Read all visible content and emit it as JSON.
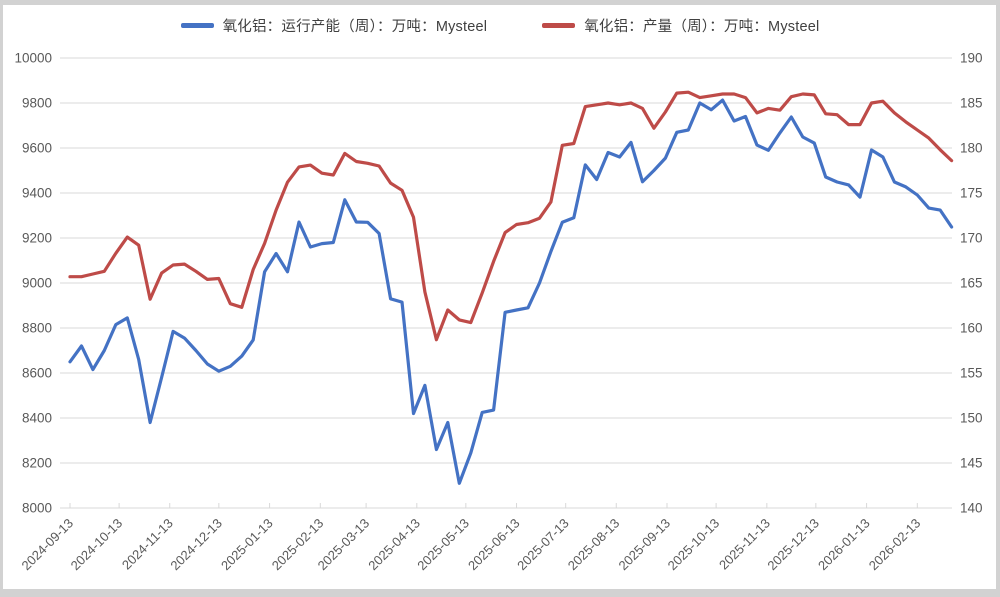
{
  "chart_data": {
    "type": "line",
    "legend_position": "top",
    "grid": "horizontal",
    "left_axis": {
      "min": 8000,
      "max": 10000,
      "step": 200,
      "ticks": [
        "10000",
        "9800",
        "9600",
        "9400",
        "9200",
        "9000",
        "8800",
        "8600",
        "8400",
        "8200",
        "8000"
      ]
    },
    "right_axis": {
      "min": 140,
      "max": 190,
      "step": 5,
      "ticks": [
        "190",
        "185",
        "180",
        "175",
        "170",
        "165",
        "160",
        "155",
        "150",
        "145",
        "140"
      ]
    },
    "x_ticks": [
      {
        "label": "2024-09-13",
        "pos": 0
      },
      {
        "label": "2024-10-13",
        "pos": 4.29
      },
      {
        "label": "2024-11-13",
        "pos": 8.71
      },
      {
        "label": "2024-12-13",
        "pos": 13
      },
      {
        "label": "2025-01-13",
        "pos": 17.43
      },
      {
        "label": "2025-02-13",
        "pos": 21.86
      },
      {
        "label": "2025-03-13",
        "pos": 25.86
      },
      {
        "label": "2025-04-13",
        "pos": 30.29
      },
      {
        "label": "2025-05-13",
        "pos": 34.57
      },
      {
        "label": "2025-06-13",
        "pos": 39
      },
      {
        "label": "2025-07-13",
        "pos": 43.29
      },
      {
        "label": "2025-08-13",
        "pos": 47.71
      },
      {
        "label": "2025-09-13",
        "pos": 52.14
      },
      {
        "label": "2025-10-13",
        "pos": 56.43
      },
      {
        "label": "2025-11-13",
        "pos": 60.86
      },
      {
        "label": "2025-12-13",
        "pos": 65.14
      },
      {
        "label": "2026-01-13",
        "pos": 69.57
      },
      {
        "label": "2026-02-13",
        "pos": 74
      }
    ],
    "series": [
      {
        "key": "capacity",
        "name": "氧化铝：运行产能（周）：万吨：Mysteel",
        "axis": "left",
        "color": "#4472C4",
        "values": [
          8650,
          8720,
          8615,
          8700,
          8815,
          8845,
          8660,
          8380,
          8580,
          8785,
          8755,
          8700,
          8640,
          8608,
          8630,
          8675,
          8747,
          9050,
          9131,
          9050,
          9271,
          9160,
          9175,
          9180,
          9370,
          9271,
          9270,
          9220,
          8930,
          8915,
          8420,
          8545,
          8260,
          8380,
          8110,
          8245,
          8425,
          8435,
          8870,
          8880,
          8890,
          9000,
          9140,
          9270,
          9290,
          9525,
          9460,
          9580,
          9560,
          9625,
          9450,
          9500,
          9555,
          9670,
          9680,
          9800,
          9770,
          9813,
          9720,
          9740,
          9613,
          9590,
          9667,
          9738,
          9649,
          9622,
          9471,
          9449,
          9436,
          9382,
          9591,
          9560,
          9449,
          9427,
          9391,
          9333,
          9324,
          9249
        ]
      },
      {
        "key": "production",
        "name": "氧化铝：产量（周）：万吨：Mysteel",
        "axis": "right",
        "color": "#BE4B48",
        "values": [
          165.7,
          165.7,
          166.0,
          166.3,
          168.3,
          170.1,
          169.2,
          163.2,
          166.1,
          167.0,
          167.1,
          166.3,
          165.4,
          165.5,
          162.7,
          162.3,
          166.5,
          169.4,
          173.1,
          176.2,
          177.9,
          178.1,
          177.2,
          177.0,
          179.4,
          178.5,
          178.3,
          178.0,
          176.1,
          175.3,
          172.3,
          164.0,
          158.7,
          162.0,
          160.9,
          160.6,
          163.9,
          167.4,
          170.6,
          171.5,
          171.7,
          172.2,
          174.0,
          180.3,
          180.5,
          184.6,
          184.8,
          185.0,
          184.8,
          185.0,
          184.4,
          182.2,
          184.0,
          186.1,
          186.2,
          185.6,
          185.8,
          186.0,
          186.0,
          185.6,
          183.9,
          184.4,
          184.2,
          185.7,
          186.0,
          185.9,
          183.8,
          183.7,
          182.6,
          182.6,
          185.0,
          185.2,
          183.9,
          182.9,
          182.0,
          181.1,
          179.8,
          178.6
        ]
      }
    ],
    "style": {
      "background": "#ffffff",
      "frame_color": "#d2d2d2",
      "grid_color": "#d9d9d9",
      "tick_label_color": "#595959",
      "legend_text_color": "#404040"
    }
  }
}
